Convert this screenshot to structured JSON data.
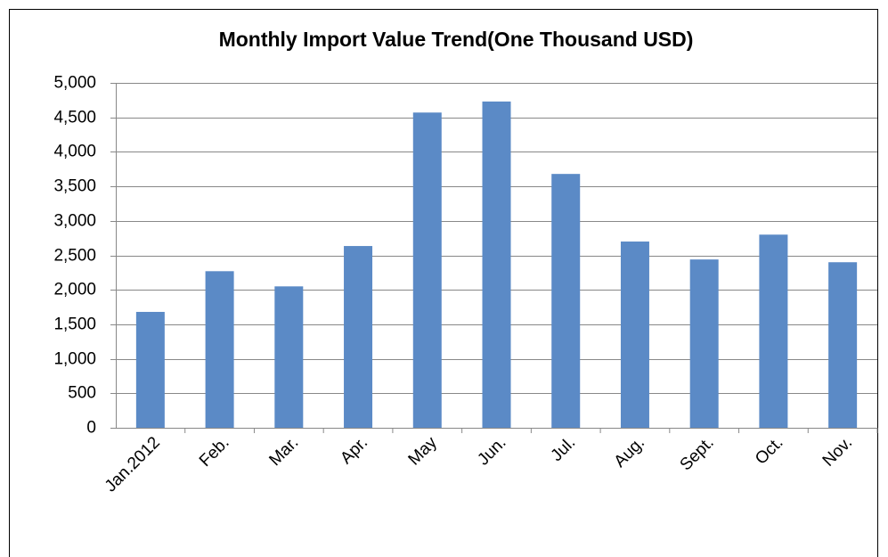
{
  "chart_data": {
    "type": "bar",
    "title": "Monthly Import Value Trend(One Thousand USD)",
    "categories": [
      "Jan.2012",
      "Feb.",
      "Mar.",
      "Apr.",
      "May",
      "Jun.",
      "Jul.",
      "Aug.",
      "Sept.",
      "Oct.",
      "Nov."
    ],
    "values": [
      1680,
      2270,
      2050,
      2635,
      4570,
      4730,
      3680,
      2700,
      2440,
      2800,
      2400
    ],
    "color": "#5b8ac6",
    "ylim": [
      0,
      5000
    ],
    "yticks": [
      0,
      500,
      {
        "value": 1000,
        "label": "1,000"
      },
      {
        "value": 1500,
        "label": "1,500"
      },
      {
        "value": 2000,
        "label": "2,000"
      },
      {
        "value": 2500,
        "label": "2,500"
      },
      {
        "value": 3000,
        "label": "3,000"
      },
      {
        "value": 3500,
        "label": "3,500"
      },
      {
        "value": 4000,
        "label": "4,000"
      },
      {
        "value": 4500,
        "label": "4,500"
      },
      {
        "value": 5000,
        "label": "5,000"
      }
    ],
    "grid": true
  }
}
